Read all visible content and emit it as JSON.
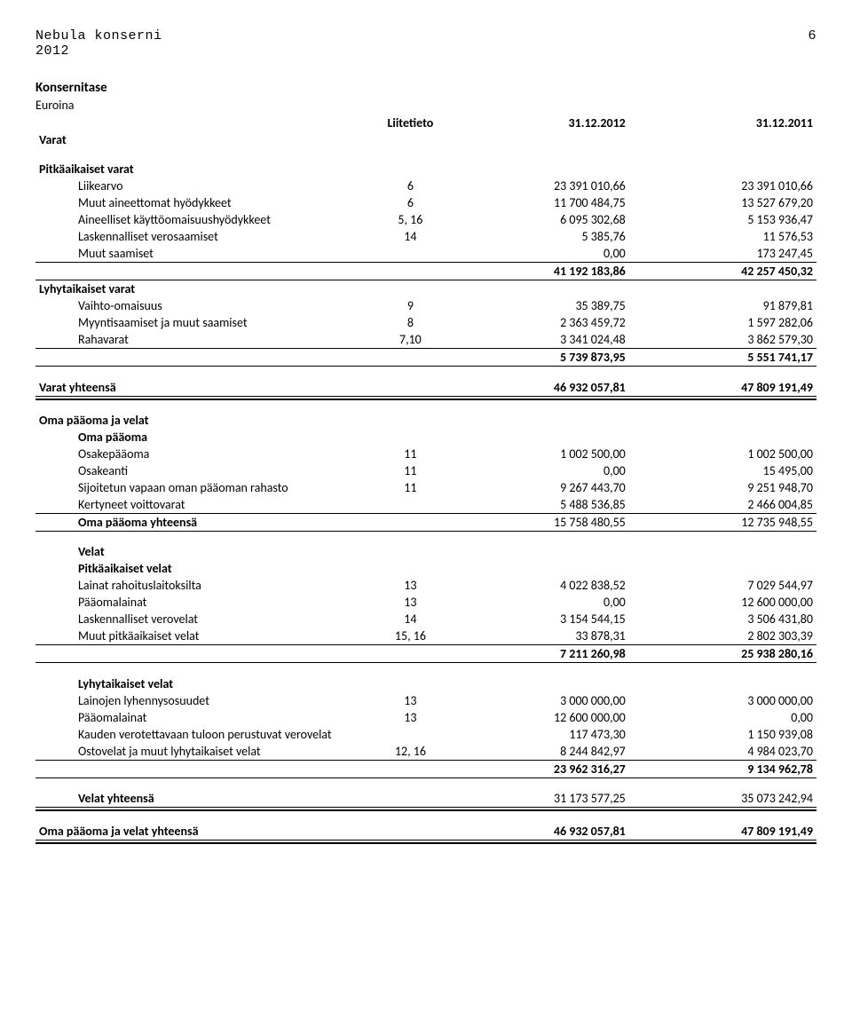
{
  "header": {
    "company": "Nebula konserni",
    "page_no": "6",
    "year": "2012"
  },
  "columns": {
    "note": "Liitetieto",
    "col1": "31.12.2012",
    "col2": "31.12.2011"
  },
  "sections": {
    "konsernitase": "Konsernitase",
    "euroina": "Euroina",
    "varat": "Varat",
    "pitkaaikaiset_varat": "Pitkäaikaiset varat",
    "lyhytaikaiset_varat": "Lyhytaikaiset varat",
    "varat_yhteensa": "Varat yhteensä",
    "oma_paaoma_ja_velat": "Oma pääoma ja velat",
    "oma_paaoma": "Oma pääoma",
    "velat": "Velat",
    "pitkaaikaiset_velat": "Pitkäaikaiset velat",
    "lyhytaikaiset_velat": "Lyhytaikaiset velat",
    "velat_yhteensa": "Velat yhteensä",
    "opjv_yhteensa": "Oma pääoma ja velat yhteensä"
  },
  "rows": {
    "liikearvo": {
      "label": "Liikearvo",
      "note": "6",
      "c1": "23 391 010,66",
      "c2": "23 391 010,66"
    },
    "muut_aineettomat": {
      "label": "Muut aineettomat hyödykkeet",
      "note": "6",
      "c1": "11 700 484,75",
      "c2": "13 527 679,20"
    },
    "aineelliset": {
      "label": "Aineelliset käyttöomaisuushyödykkeet",
      "note": "5, 16",
      "c1": "6 095 302,68",
      "c2": "5 153 936,47"
    },
    "lask_verosaamiset": {
      "label": "Laskennalliset verosaamiset",
      "note": "14",
      "c1": "5 385,76",
      "c2": "11 576,53"
    },
    "muut_saamiset_pa": {
      "label": "Muut saamiset",
      "note": "",
      "c1": "0,00",
      "c2": "173 247,45"
    },
    "pa_sum": {
      "c1": "41 192 183,86",
      "c2": "42 257 450,32"
    },
    "vaihto": {
      "label": "Vaihto-omaisuus",
      "note": "9",
      "c1": "35 389,75",
      "c2": "91 879,81"
    },
    "myyntisaamiset": {
      "label": "Myyntisaamiset ja muut saamiset",
      "note": "8",
      "c1": "2 363 459,72",
      "c2": "1 597 282,06"
    },
    "rahavarat": {
      "label": "Rahavarat",
      "note": "7,10",
      "c1": "3 341 024,48",
      "c2": "3 862 579,30"
    },
    "la_sum": {
      "c1": "5 739 873,95",
      "c2": "5 551 741,17"
    },
    "varat_yht": {
      "c1": "46 932 057,81",
      "c2": "47 809 191,49"
    },
    "osakepaaoma": {
      "label": "Osakepääoma",
      "note": "11",
      "c1": "1 002 500,00",
      "c2": "1 002 500,00"
    },
    "osakeanti": {
      "label": "Osakeanti",
      "note": "11",
      "c1": "0,00",
      "c2": "15 495,00"
    },
    "svopr": {
      "label": "Sijoitetun vapaan oman pääoman rahasto",
      "note": "11",
      "c1": "9 267 443,70",
      "c2": "9 251 948,70"
    },
    "kertyneet": {
      "label": "Kertyneet voittovarat",
      "note": "",
      "c1": "5 488 536,85",
      "c2": "2 466 004,85"
    },
    "op_yht": {
      "label": "Oma pääoma yhteensä",
      "c1": "15 758 480,55",
      "c2": "12 735 948,55"
    },
    "lainat_rl": {
      "label": "Lainat rahoituslaitoksilta",
      "note": "13",
      "c1": "4 022 838,52",
      "c2": "7 029 544,97"
    },
    "paaomalainat_pa": {
      "label": "Pääomalainat",
      "note": "13",
      "c1": "0,00",
      "c2": "12 600 000,00"
    },
    "lask_verovelat": {
      "label": "Laskennalliset verovelat",
      "note": "14",
      "c1": "3 154 544,15",
      "c2": "3 506 431,80"
    },
    "muut_pav": {
      "label": "Muut pitkäaikaiset velat",
      "note": "15, 16",
      "c1": "33 878,31",
      "c2": "2 802 303,39"
    },
    "pav_sum": {
      "c1": "7 211 260,98",
      "c2": "25 938 280,16"
    },
    "lyhennys": {
      "label": "Lainojen lyhennysosuudet",
      "note": "13",
      "c1": "3 000 000,00",
      "c2": "3 000 000,00"
    },
    "paaomalainat_la": {
      "label": "Pääomalainat",
      "note": "13",
      "c1": "12 600 000,00",
      "c2": "0,00"
    },
    "kvtpv": {
      "label": "Kauden verotettavaan tuloon perustuvat verovelat",
      "note": "",
      "c1": "117 473,30",
      "c2": "1 150 939,08"
    },
    "ostovelat": {
      "label": "Ostovelat ja muut lyhytaikaiset velat",
      "note": "12, 16",
      "c1": "8 244 842,97",
      "c2": "4 984 023,70"
    },
    "lav_sum": {
      "c1": "23 962 316,27",
      "c2": "9 134 962,78"
    },
    "velat_yht": {
      "c1": "31 173 577,25",
      "c2": "35 073 242,94"
    },
    "opjv_yht": {
      "c1": "46 932 057,81",
      "c2": "47 809 191,49"
    }
  }
}
